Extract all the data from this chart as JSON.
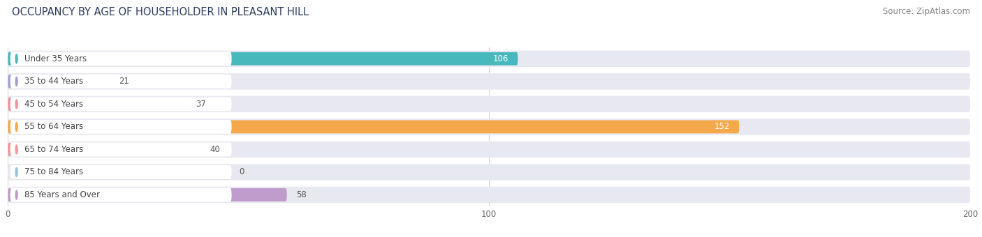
{
  "title": "OCCUPANCY BY AGE OF HOUSEHOLDER IN PLEASANT HILL",
  "source": "Source: ZipAtlas.com",
  "categories": [
    "Under 35 Years",
    "35 to 44 Years",
    "45 to 54 Years",
    "55 to 64 Years",
    "65 to 74 Years",
    "75 to 84 Years",
    "85 Years and Over"
  ],
  "values": [
    106,
    21,
    37,
    152,
    40,
    0,
    58
  ],
  "bar_colors": [
    "#47b8bc",
    "#a0a0d8",
    "#f0929c",
    "#f5a84a",
    "#f0969a",
    "#98c0e0",
    "#c09ccc"
  ],
  "bar_bg_color": "#e8e8f0",
  "label_bg_color": "#ffffff",
  "xlim": [
    0,
    200
  ],
  "xticks": [
    0,
    100,
    200
  ],
  "title_fontsize": 10.5,
  "source_fontsize": 8.5,
  "label_fontsize": 8.5,
  "value_fontsize": 8.5,
  "value_color_dark": "#555555",
  "value_color_light": "#ffffff",
  "background_color": "#ffffff",
  "grid_color": "#cccccc",
  "text_color": "#444444"
}
